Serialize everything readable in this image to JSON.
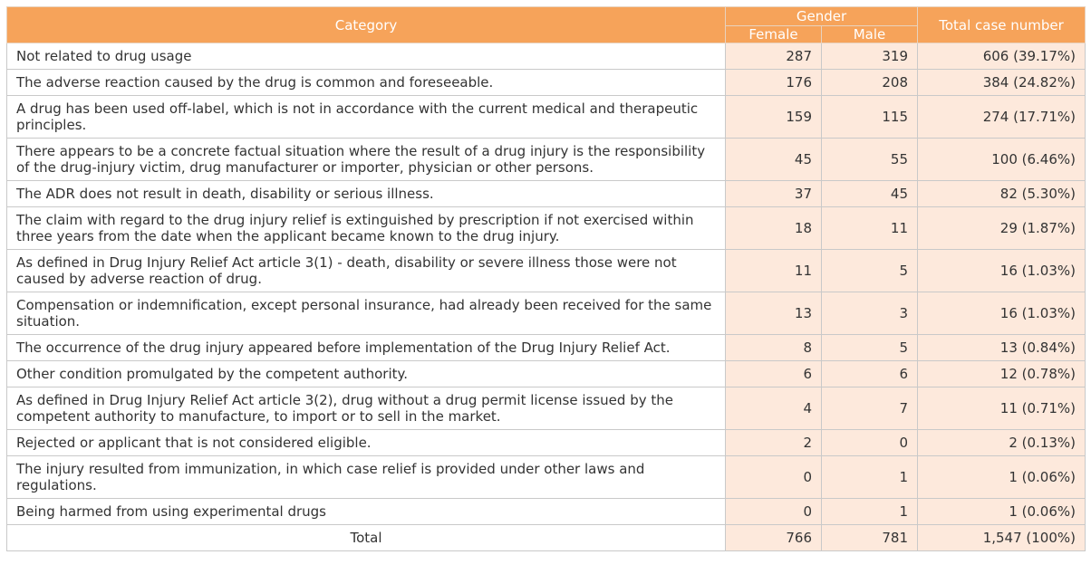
{
  "table": {
    "headers": {
      "category": "Category",
      "gender": "Gender",
      "female": "Female",
      "male": "Male",
      "total": "Total case number"
    },
    "rows": [
      {
        "category": "Not related to drug usage",
        "female": "287",
        "male": "319",
        "total": "606 (39.17%)"
      },
      {
        "category": "The adverse reaction caused by the drug is common and foreseeable.",
        "female": "176",
        "male": "208",
        "total": "384 (24.82%)"
      },
      {
        "category": "A drug has been used off-label, which is not in accordance with the current medical and therapeutic principles.",
        "female": "159",
        "male": "115",
        "total": "274 (17.71%)"
      },
      {
        "category": "There appears to be a concrete factual situation where the result of a drug injury is the responsibility of the drug-injury victim, drug manufacturer or importer, physician or other persons.",
        "female": "45",
        "male": "55",
        "total": "100 (6.46%)"
      },
      {
        "category": "The ADR does not result in death, disability or serious illness.",
        "female": "37",
        "male": "45",
        "total": "82 (5.30%)"
      },
      {
        "category": "The claim with regard to the drug injury relief is extinguished by prescription if not exercised within three years from the date when the applicant became known to the drug injury.",
        "female": "18",
        "male": "11",
        "total": "29 (1.87%)"
      },
      {
        "category": "As defined in Drug Injury Relief Act article 3(1) - death, disability or severe illness those were not caused by adverse reaction of drug.",
        "female": "11",
        "male": "5",
        "total": "16 (1.03%)"
      },
      {
        "category": "Compensation or indemnification, except personal insurance, had already been received for the same situation.",
        "female": "13",
        "male": "3",
        "total": "16 (1.03%)"
      },
      {
        "category": "The occurrence of the drug injury appeared before implementation of the Drug Injury Relief  Act.",
        "female": "8",
        "male": "5",
        "total": "13 (0.84%)"
      },
      {
        "category": "Other condition promulgated by the competent authority.",
        "female": "6",
        "male": "6",
        "total": "12 (0.78%)"
      },
      {
        "category": "As defined in Drug Injury Relief Act article 3(2), drug without a drug permit license issued by the competent authority to manufacture, to import or to sell in the market.",
        "female": "4",
        "male": "7",
        "total": "11 (0.71%)"
      },
      {
        "category": "Rejected or applicant that is not considered eligible.",
        "female": "2",
        "male": "0",
        "total": "2 (0.13%)"
      },
      {
        "category": "The injury resulted from immunization, in which case relief is provided under other laws and regulations.",
        "female": "0",
        "male": "1",
        "total": "1 (0.06%)"
      },
      {
        "category": "Being harmed from using experimental drugs",
        "female": "0",
        "male": "1",
        "total": "1 (0.06%)"
      }
    ],
    "total_row": {
      "label": "Total",
      "female": "766",
      "male": "781",
      "total": "1,547 (100%)"
    }
  },
  "colors": {
    "header_bg": "#f6a35a",
    "header_text": "#ffffff",
    "number_cell_bg": "#fde9dc",
    "border": "#c9c9c9",
    "text": "#333333"
  }
}
